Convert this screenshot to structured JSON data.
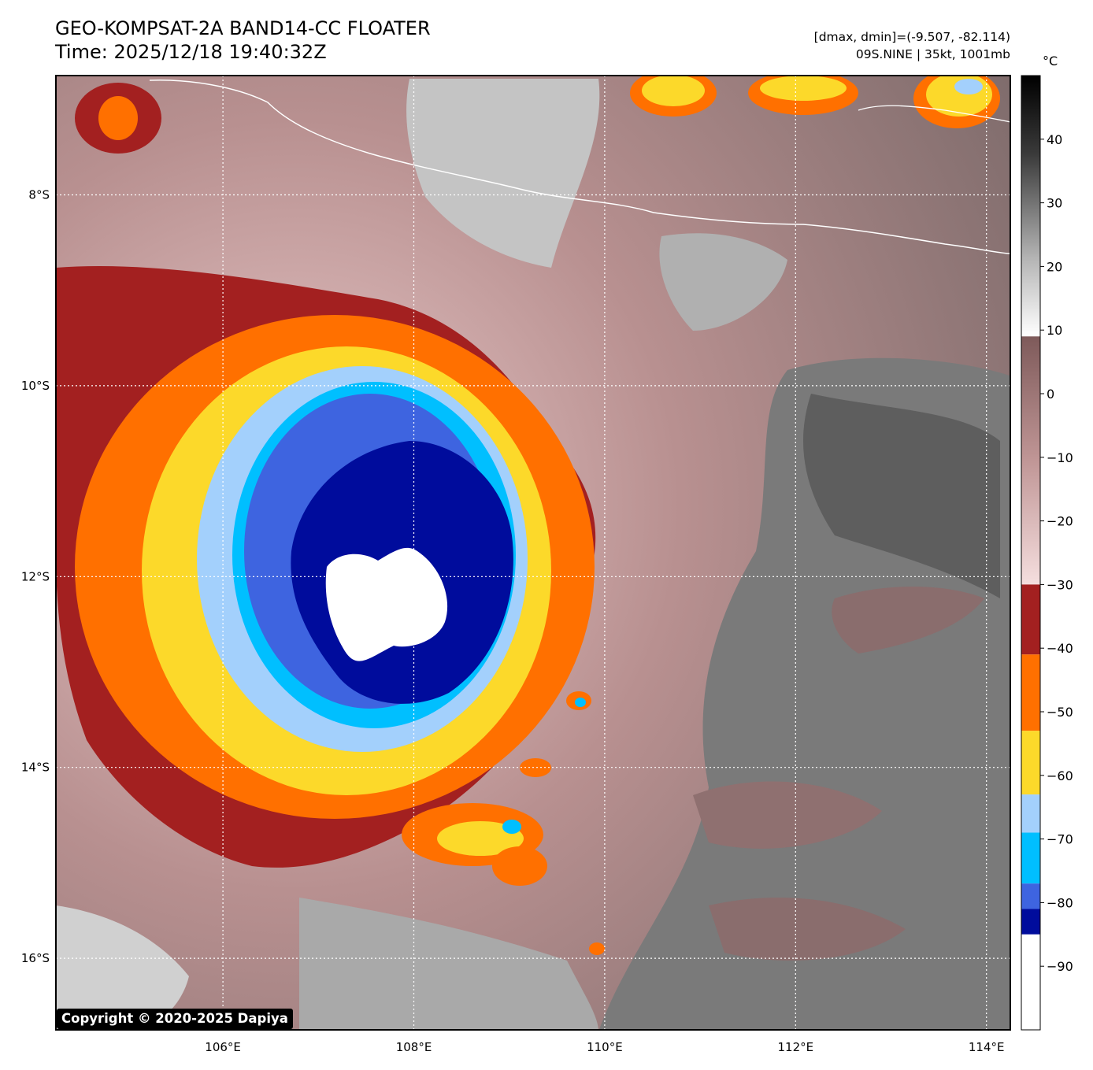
{
  "header": {
    "title": "GEO-KOMPSAT-2A BAND14-CC FLOATER",
    "time": "Time: 2025/12/18 19:40:32Z",
    "range": "[dmax, dmin]=(-9.507, -82.114)",
    "storm": "09S.NINE | 35kt, 1001mb"
  },
  "copyright": "Copyright © 2020-2025 Dapiya",
  "map": {
    "lon_range": [
      104.25,
      114.25
    ],
    "lat_range": [
      -16.75,
      -6.75
    ],
    "lon_ticks": [
      {
        "value": 106,
        "label": "106°E"
      },
      {
        "value": 108,
        "label": "108°E"
      },
      {
        "value": 110,
        "label": "110°E"
      },
      {
        "value": 112,
        "label": "112°E"
      },
      {
        "value": 114,
        "label": "114°E"
      }
    ],
    "lat_ticks": [
      {
        "value": -8,
        "label": "8°S"
      },
      {
        "value": -10,
        "label": "10°S"
      },
      {
        "value": -12,
        "label": "12°S"
      },
      {
        "value": -14,
        "label": "14°S"
      },
      {
        "value": -16,
        "label": "16°S"
      }
    ],
    "grid": true,
    "storm_center": {
      "lon": 108.2,
      "lat": -12.1
    }
  },
  "colorbar": {
    "unit": "°C",
    "range": [
      -100,
      50
    ],
    "ticks": [
      {
        "value": 40,
        "label": "40"
      },
      {
        "value": 30,
        "label": "30"
      },
      {
        "value": 20,
        "label": "20"
      },
      {
        "value": 10,
        "label": "10"
      },
      {
        "value": 0,
        "label": "0"
      },
      {
        "value": -10,
        "label": "−10"
      },
      {
        "value": -20,
        "label": "−20"
      },
      {
        "value": -30,
        "label": "−30"
      },
      {
        "value": -40,
        "label": "−40"
      },
      {
        "value": -50,
        "label": "−50"
      },
      {
        "value": -60,
        "label": "−60"
      },
      {
        "value": -70,
        "label": "−70"
      },
      {
        "value": -80,
        "label": "−80"
      },
      {
        "value": -90,
        "label": "−90"
      }
    ],
    "segments": [
      {
        "from": 9,
        "to": 50,
        "type": "gradient",
        "colors": [
          "#ffffff",
          "#000000"
        ]
      },
      {
        "from": -30,
        "to": 9,
        "type": "gradient",
        "colors": [
          "#f5dede",
          "#7e5a5a"
        ]
      },
      {
        "from": -41,
        "to": -30,
        "color": "#a32020"
      },
      {
        "from": -53,
        "to": -41,
        "color": "#ff7000"
      },
      {
        "from": -63,
        "to": -53,
        "color": "#fcd92a"
      },
      {
        "from": -69,
        "to": -63,
        "color": "#a3d0fc"
      },
      {
        "from": -77,
        "to": -69,
        "color": "#00bfff"
      },
      {
        "from": -81,
        "to": -77,
        "color": "#3e64e0"
      },
      {
        "from": -85,
        "to": -81,
        "color": "#000c9c"
      },
      {
        "from": -100,
        "to": -85,
        "color": "#ffffff"
      }
    ]
  }
}
